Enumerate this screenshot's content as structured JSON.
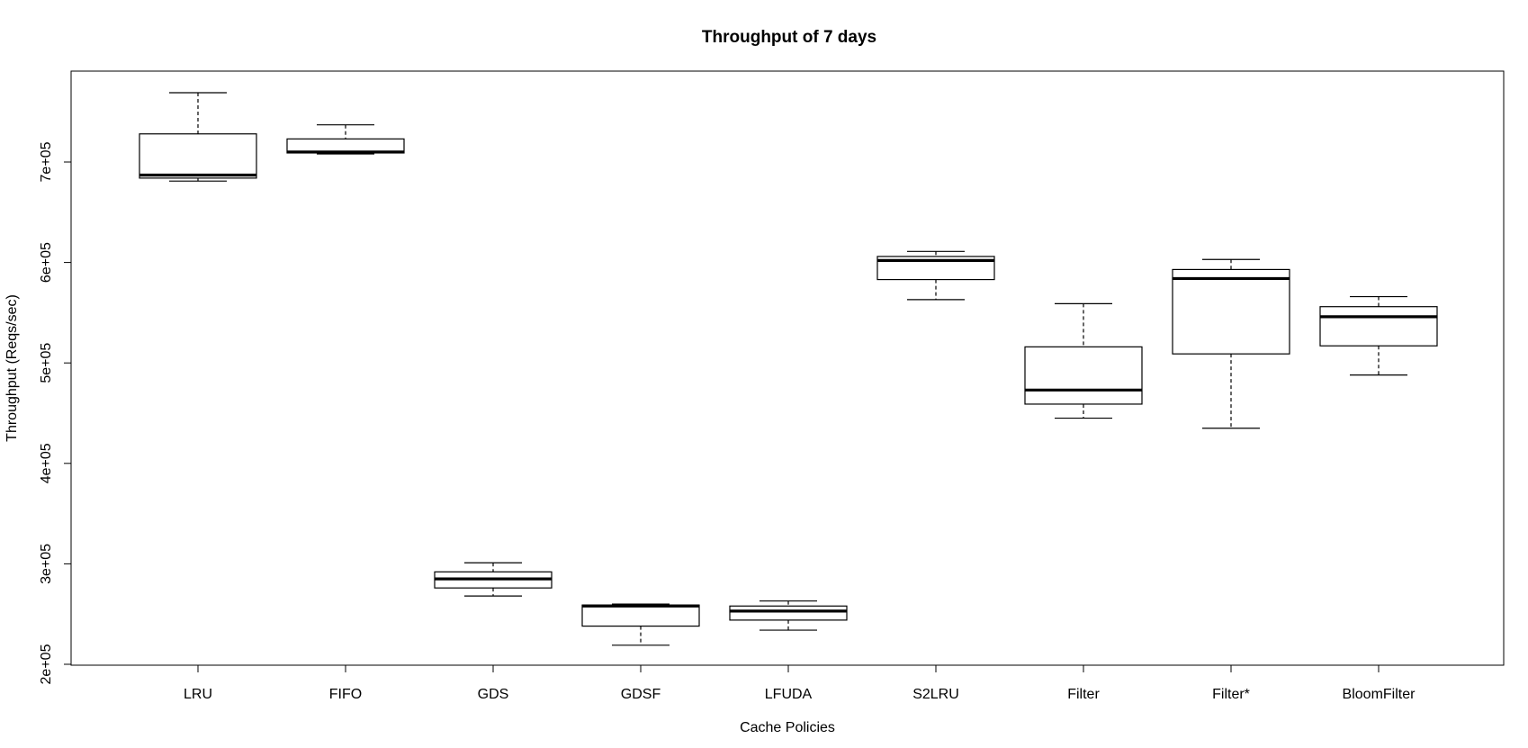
{
  "chart_data": {
    "type": "box",
    "title": "Throughput of 7 days",
    "xlabel": "Cache Policies",
    "ylabel": "Throughput (Reqs/sec)",
    "ylim": [
      200000,
      790000
    ],
    "yticks": [
      200000,
      300000,
      400000,
      500000,
      600000,
      700000
    ],
    "ytick_labels": [
      "2e+05",
      "3e+05",
      "4e+05",
      "5e+05",
      "6e+05",
      "7e+05"
    ],
    "categories": [
      "LRU",
      "FIFO",
      "GDS",
      "GDSF",
      "LFUDA",
      "S2LRU",
      "Filter",
      "Filter*",
      "BloomFilter"
    ],
    "boxes": [
      {
        "min": 681000,
        "q1": 684000,
        "median": 687000,
        "q3": 728000,
        "max": 769000
      },
      {
        "min": 708000,
        "q1": 709000,
        "median": 710000,
        "q3": 723000,
        "max": 737000
      },
      {
        "min": 268000,
        "q1": 276000,
        "median": 285000,
        "q3": 292000,
        "max": 301000
      },
      {
        "min": 219000,
        "q1": 238000,
        "median": 258000,
        "q3": 259000,
        "max": 260000
      },
      {
        "min": 234000,
        "q1": 244000,
        "median": 253000,
        "q3": 258000,
        "max": 263000
      },
      {
        "min": 563000,
        "q1": 583000,
        "median": 602000,
        "q3": 606000,
        "max": 611000
      },
      {
        "min": 445000,
        "q1": 459000,
        "median": 473000,
        "q3": 516000,
        "max": 559000
      },
      {
        "min": 435000,
        "q1": 509000,
        "median": 584000,
        "q3": 593000,
        "max": 603000
      },
      {
        "min": 488000,
        "q1": 517000,
        "median": 546000,
        "q3": 556000,
        "max": 566000
      }
    ]
  }
}
